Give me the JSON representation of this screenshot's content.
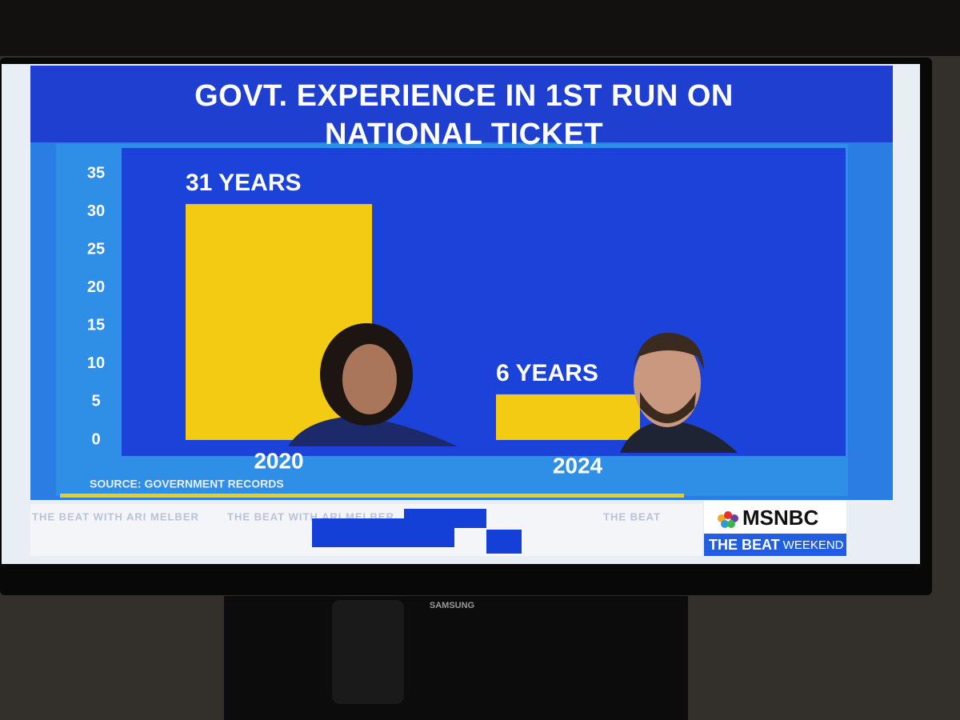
{
  "chart_data": {
    "type": "bar",
    "title": "GOVT. EXPERIENCE IN 1ST RUN ON NATIONAL TICKET",
    "categories": [
      "2020",
      "2024"
    ],
    "values": [
      31,
      6
    ],
    "value_labels": [
      "31 YEARS",
      "6 YEARS"
    ],
    "color": "#f2cb12",
    "ylim": [
      0,
      35
    ],
    "yticks": [
      0,
      5,
      10,
      15,
      20,
      25,
      30,
      35
    ],
    "source": "SOURCE: GOVERNMENT RECORDS"
  },
  "ticker": [
    "THE BEAT WITH ARI MELBER",
    "THE BEAT WITH ARI MELBER",
    "THE BEAT"
  ],
  "logo": {
    "network": "MSNBC",
    "show": "THE BEAT",
    "show_suffix": "WEEKEND"
  },
  "tv_brand": "SAMSUNG"
}
